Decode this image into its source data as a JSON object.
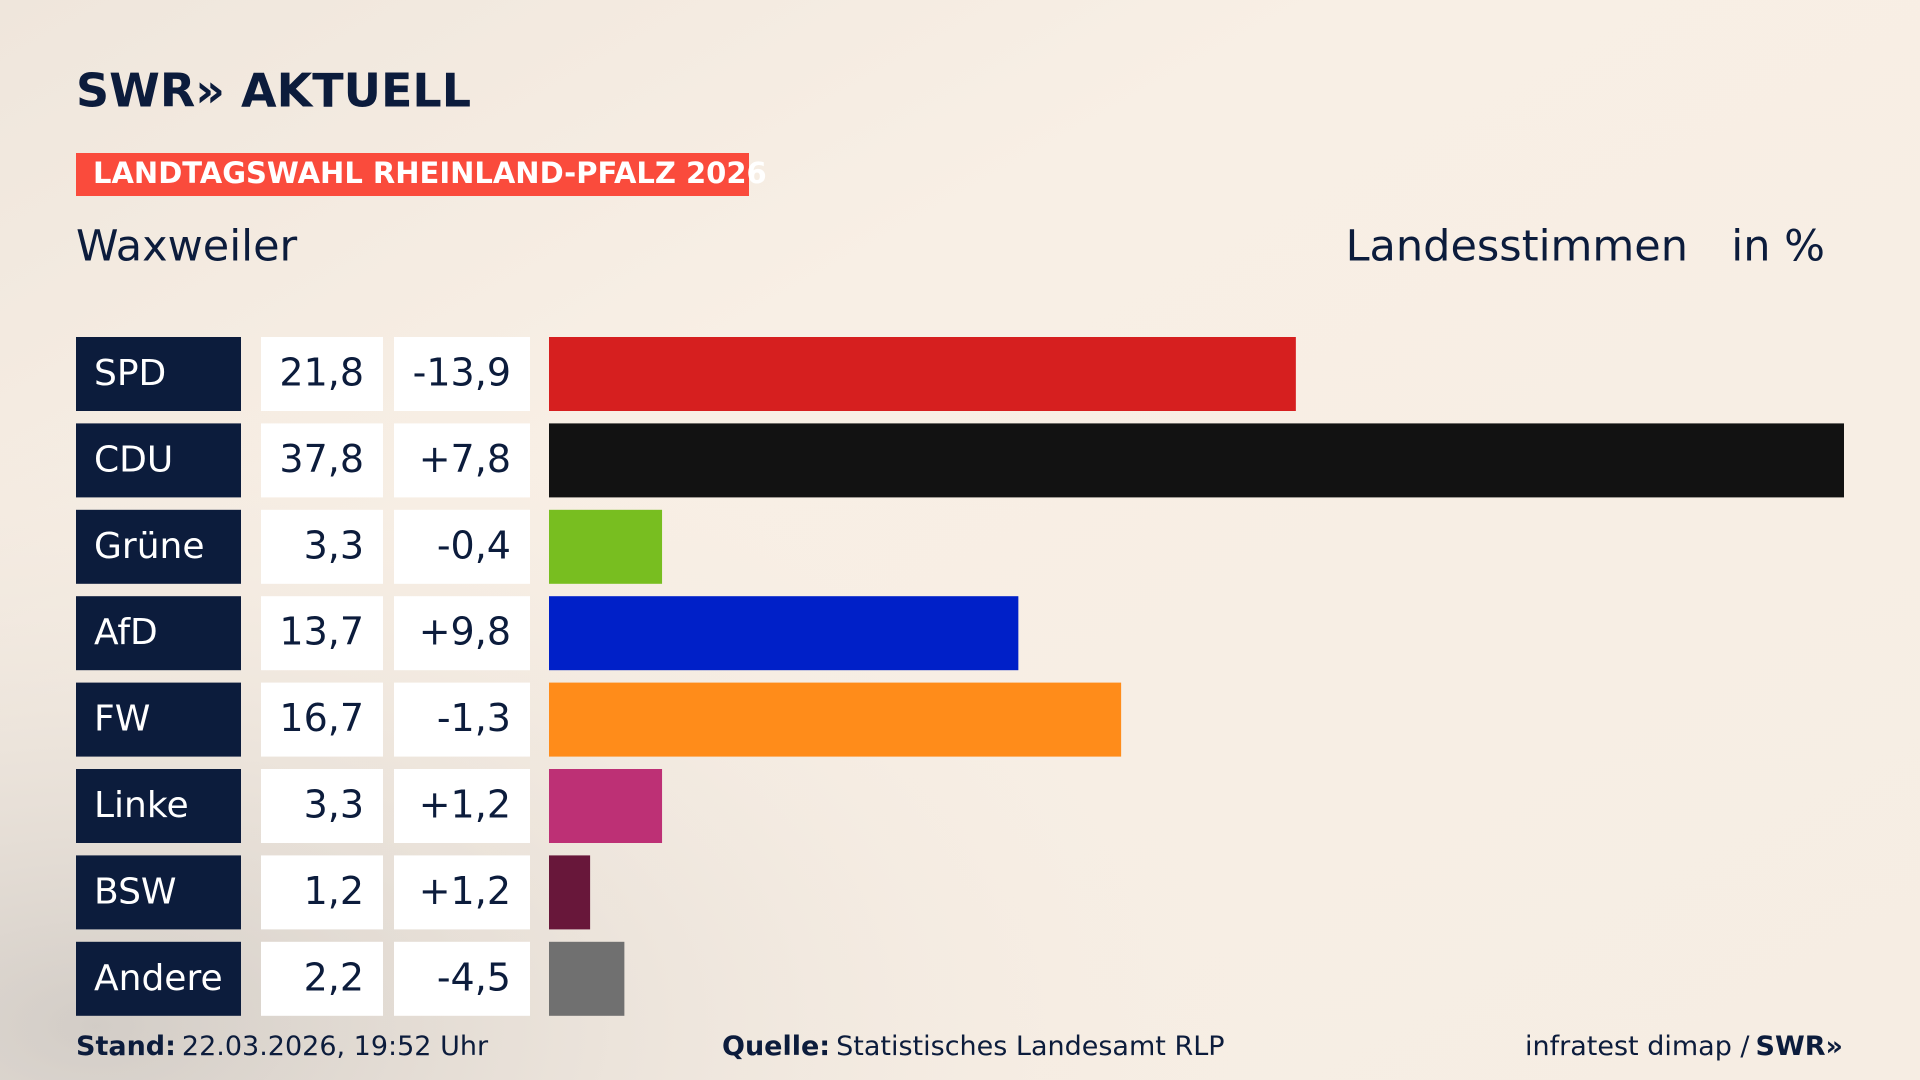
{
  "chart_data": {
    "type": "bar",
    "brand": "SWR» AKTUELL",
    "banner": "LANDTAGSWAHL RHEINLAND-PFALZ 2026",
    "title": "Waxweiler",
    "measure": "Landesstimmen",
    "unit": "in %",
    "categories": [
      "SPD",
      "CDU",
      "Grüne",
      "AfD",
      "FW",
      "Linke",
      "BSW",
      "Andere"
    ],
    "values": [
      21.8,
      37.8,
      3.3,
      13.7,
      16.7,
      3.3,
      1.2,
      2.2
    ],
    "value_labels": [
      "21,8",
      "37,8",
      "3,3",
      "13,7",
      "16,7",
      "3,3",
      "1,2",
      "2,2"
    ],
    "changes": [
      "-13,9",
      "+7,8",
      "-0,4",
      "+9,8",
      "-1,3",
      "+1,2",
      "+1,2",
      "-4,5"
    ],
    "colors": [
      "#d61f1f",
      "#121212",
      "#78be20",
      "#0020c8",
      "#ff8c1a",
      "#bd3075",
      "#68173a",
      "#707070"
    ],
    "xlim": [
      0,
      37.8
    ],
    "stand_label": "Stand:",
    "stand": "22.03.2026, 19:52 Uhr",
    "source_label": "Quelle:",
    "source": "Statistisches Landesamt RLP",
    "credit": "infratest dimap /",
    "credit_brand": "SWR»"
  }
}
